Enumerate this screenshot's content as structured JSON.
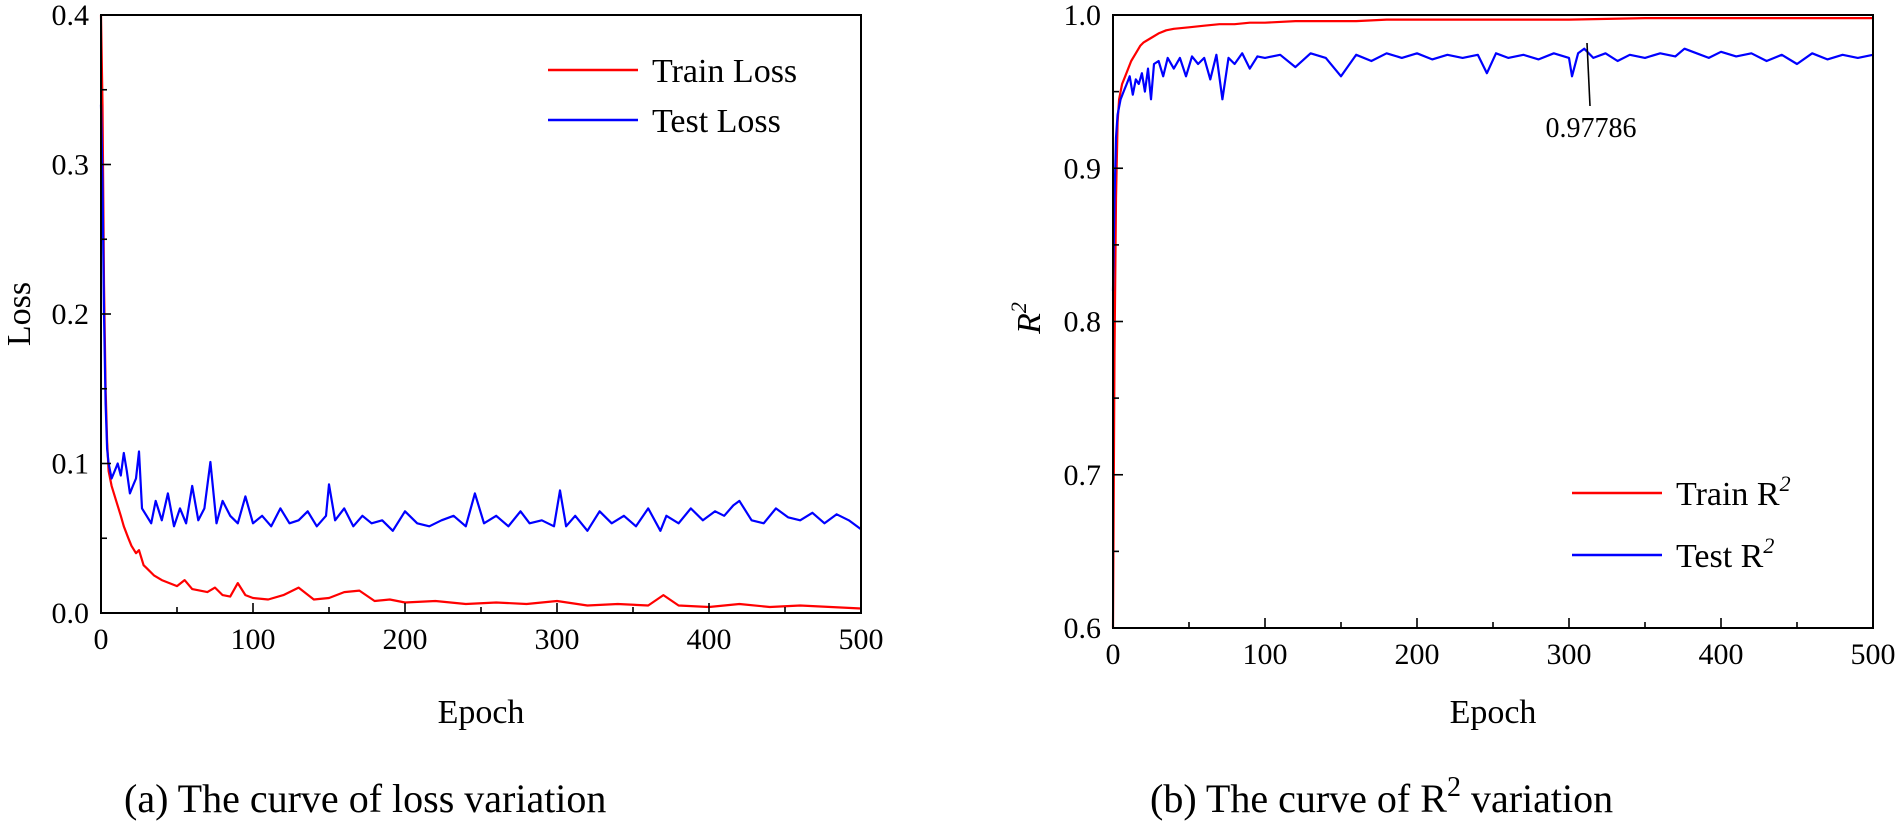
{
  "chart_data": [
    {
      "type": "line",
      "title": "",
      "xlabel": "Epoch",
      "ylabel": "Loss",
      "xlim": [
        0,
        500
      ],
      "ylim": [
        0,
        0.4
      ],
      "xticks": [
        0,
        100,
        200,
        300,
        400,
        500
      ],
      "xtick_labels": [
        "0",
        "100",
        "200",
        "300",
        "400",
        "500"
      ],
      "yticks": [
        0.0,
        0.1,
        0.2,
        0.3,
        0.4
      ],
      "ytick_labels": [
        "0.0",
        "0.1",
        "0.2",
        "0.3",
        "0.4"
      ],
      "grid": false,
      "legend_position": "top-right",
      "caption": "(a)  The curve of loss variation",
      "series": [
        {
          "name": "Train Loss",
          "color": "#ff0000",
          "x": [
            0,
            1,
            2,
            3,
            4,
            5,
            7,
            10,
            13,
            15,
            18,
            20,
            23,
            25,
            28,
            30,
            35,
            40,
            45,
            50,
            55,
            60,
            65,
            70,
            75,
            80,
            85,
            90,
            95,
            100,
            110,
            120,
            130,
            140,
            150,
            160,
            170,
            180,
            190,
            200,
            220,
            240,
            260,
            280,
            300,
            320,
            340,
            360,
            370,
            380,
            400,
            420,
            440,
            460,
            480,
            500
          ],
          "values": [
            0.4,
            0.34,
            0.22,
            0.15,
            0.115,
            0.095,
            0.085,
            0.075,
            0.065,
            0.058,
            0.05,
            0.045,
            0.04,
            0.042,
            0.032,
            0.03,
            0.025,
            0.022,
            0.02,
            0.018,
            0.022,
            0.016,
            0.015,
            0.014,
            0.017,
            0.012,
            0.011,
            0.02,
            0.012,
            0.01,
            0.009,
            0.012,
            0.017,
            0.009,
            0.01,
            0.014,
            0.015,
            0.008,
            0.009,
            0.007,
            0.008,
            0.006,
            0.007,
            0.006,
            0.008,
            0.005,
            0.006,
            0.005,
            0.012,
            0.005,
            0.004,
            0.006,
            0.004,
            0.005,
            0.004,
            0.003
          ]
        },
        {
          "name": "Test Loss",
          "color": "#0000ff",
          "x": [
            0,
            1,
            2,
            3,
            4,
            5,
            7,
            9,
            11,
            13,
            15,
            17,
            19,
            21,
            23,
            25,
            27,
            30,
            33,
            36,
            40,
            44,
            48,
            52,
            56,
            60,
            64,
            68,
            72,
            76,
            80,
            85,
            90,
            95,
            100,
            106,
            112,
            118,
            124,
            130,
            136,
            142,
            148,
            150,
            154,
            160,
            166,
            172,
            178,
            185,
            192,
            200,
            208,
            216,
            224,
            232,
            240,
            246,
            252,
            260,
            268,
            276,
            282,
            290,
            298,
            302,
            306,
            312,
            320,
            328,
            336,
            344,
            352,
            360,
            368,
            372,
            380,
            388,
            396,
            404,
            410,
            416,
            420,
            428,
            436,
            444,
            452,
            460,
            468,
            476,
            484,
            492,
            500
          ],
          "values": [
            0.34,
            0.29,
            0.2,
            0.14,
            0.11,
            0.1,
            0.09,
            0.095,
            0.1,
            0.092,
            0.107,
            0.095,
            0.08,
            0.085,
            0.09,
            0.108,
            0.07,
            0.065,
            0.06,
            0.075,
            0.062,
            0.08,
            0.058,
            0.07,
            0.06,
            0.085,
            0.062,
            0.07,
            0.101,
            0.06,
            0.075,
            0.065,
            0.06,
            0.078,
            0.06,
            0.065,
            0.058,
            0.07,
            0.06,
            0.062,
            0.068,
            0.058,
            0.065,
            0.086,
            0.062,
            0.07,
            0.058,
            0.065,
            0.06,
            0.062,
            0.055,
            0.068,
            0.06,
            0.058,
            0.062,
            0.065,
            0.058,
            0.08,
            0.06,
            0.065,
            0.058,
            0.068,
            0.06,
            0.062,
            0.058,
            0.082,
            0.058,
            0.065,
            0.055,
            0.068,
            0.06,
            0.065,
            0.058,
            0.07,
            0.055,
            0.065,
            0.06,
            0.07,
            0.062,
            0.068,
            0.065,
            0.072,
            0.075,
            0.062,
            0.06,
            0.07,
            0.064,
            0.062,
            0.067,
            0.06,
            0.066,
            0.062,
            0.056
          ]
        }
      ]
    },
    {
      "type": "line",
      "title": "",
      "xlabel": "Epoch",
      "ylabel": "R",
      "ylabel_sup": "2",
      "xlim": [
        0,
        500
      ],
      "ylim": [
        0.6,
        1.0
      ],
      "xticks": [
        0,
        100,
        200,
        300,
        400,
        500
      ],
      "xtick_labels": [
        "0",
        "100",
        "200",
        "300",
        "400",
        "500"
      ],
      "yticks": [
        0.6,
        0.7,
        0.8,
        0.9,
        1.0
      ],
      "ytick_labels": [
        "0.6",
        "0.7",
        "0.8",
        "0.9",
        "1.0"
      ],
      "grid": false,
      "legend_position": "bottom-right",
      "caption": "(b)  The curve of R",
      "caption_sup": "2",
      "caption_tail": " variation",
      "annotation": {
        "text": "0.97786",
        "x": 310,
        "y": 0.97786
      },
      "series": [
        {
          "name": "Train R",
          "name_sup": "2",
          "color": "#ff0000",
          "x": [
            0,
            1,
            2,
            3,
            4,
            5,
            6,
            8,
            10,
            12,
            15,
            18,
            20,
            25,
            30,
            35,
            40,
            50,
            60,
            70,
            80,
            90,
            100,
            120,
            140,
            160,
            180,
            200,
            250,
            300,
            350,
            400,
            450,
            500
          ],
          "values": [
            0.6,
            0.78,
            0.88,
            0.93,
            0.945,
            0.95,
            0.955,
            0.96,
            0.965,
            0.97,
            0.975,
            0.98,
            0.982,
            0.985,
            0.988,
            0.99,
            0.991,
            0.992,
            0.993,
            0.994,
            0.994,
            0.995,
            0.995,
            0.996,
            0.996,
            0.996,
            0.997,
            0.997,
            0.997,
            0.997,
            0.998,
            0.998,
            0.998,
            0.998
          ]
        },
        {
          "name": "Test R",
          "name_sup": "2",
          "color": "#0000ff",
          "x": [
            0,
            1,
            2,
            3,
            4,
            5,
            7,
            9,
            11,
            13,
            15,
            17,
            19,
            21,
            23,
            25,
            27,
            30,
            33,
            36,
            40,
            44,
            48,
            52,
            56,
            60,
            64,
            68,
            72,
            76,
            80,
            85,
            90,
            95,
            100,
            110,
            120,
            130,
            140,
            150,
            160,
            170,
            180,
            190,
            200,
            210,
            220,
            230,
            240,
            246,
            252,
            260,
            270,
            280,
            290,
            300,
            302,
            306,
            310,
            316,
            324,
            332,
            340,
            350,
            360,
            370,
            376,
            384,
            392,
            400,
            410,
            420,
            430,
            440,
            450,
            460,
            470,
            480,
            490,
            500
          ],
          "values": [
            0.82,
            0.88,
            0.92,
            0.935,
            0.94,
            0.945,
            0.95,
            0.955,
            0.96,
            0.948,
            0.958,
            0.955,
            0.962,
            0.95,
            0.965,
            0.945,
            0.968,
            0.97,
            0.96,
            0.972,
            0.965,
            0.972,
            0.96,
            0.973,
            0.968,
            0.972,
            0.958,
            0.974,
            0.945,
            0.972,
            0.968,
            0.975,
            0.965,
            0.973,
            0.972,
            0.974,
            0.966,
            0.975,
            0.972,
            0.96,
            0.974,
            0.97,
            0.975,
            0.972,
            0.975,
            0.971,
            0.974,
            0.972,
            0.974,
            0.962,
            0.975,
            0.972,
            0.974,
            0.971,
            0.975,
            0.972,
            0.96,
            0.975,
            0.978,
            0.972,
            0.975,
            0.97,
            0.974,
            0.972,
            0.975,
            0.973,
            0.978,
            0.975,
            0.972,
            0.976,
            0.973,
            0.975,
            0.97,
            0.974,
            0.968,
            0.975,
            0.971,
            0.974,
            0.972,
            0.974
          ]
        }
      ]
    }
  ]
}
